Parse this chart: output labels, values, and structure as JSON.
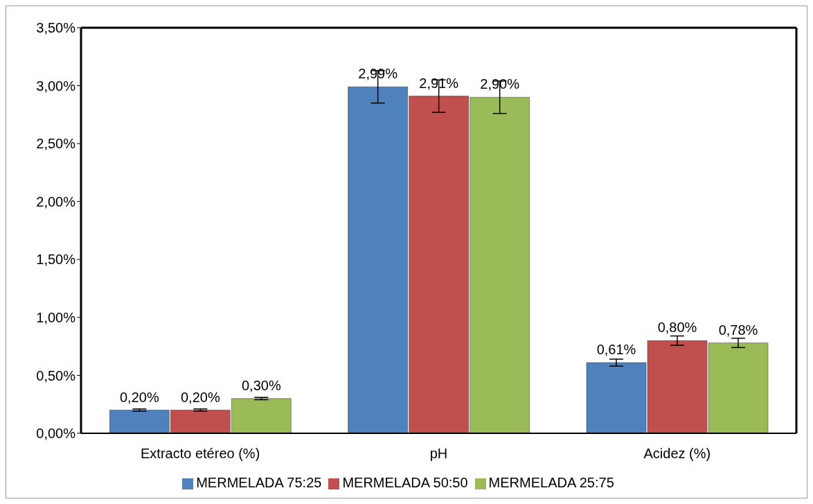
{
  "chart_data": {
    "type": "bar",
    "categories": [
      "Extracto etéreo (%)",
      "pH",
      "Acidez (%)"
    ],
    "series": [
      {
        "name": "MERMELADA 75:25",
        "color": "#4f81bd",
        "values": [
          0.2,
          2.99,
          0.61
        ],
        "errors": [
          0.01,
          0.14,
          0.03
        ],
        "value_labels": [
          "0,20%",
          "2,99%",
          "0,61%"
        ]
      },
      {
        "name": "MERMELADA 50:50",
        "color": "#c0504d",
        "values": [
          0.2,
          2.91,
          0.8
        ],
        "errors": [
          0.01,
          0.14,
          0.04
        ],
        "value_labels": [
          "0,20%",
          "2,91%",
          "0,80%"
        ]
      },
      {
        "name": "MERMELADA 25:75",
        "color": "#9bbb59",
        "values": [
          0.3,
          2.9,
          0.78
        ],
        "errors": [
          0.01,
          0.14,
          0.04
        ],
        "value_labels": [
          "0,30%",
          "2,90%",
          "0,78%"
        ]
      }
    ],
    "ylim": [
      0,
      3.5
    ],
    "yticks": [
      {
        "value": 0,
        "label": "0,00%"
      },
      {
        "value": 0.5,
        "label": "0,50%"
      },
      {
        "value": 1,
        "label": "1,00%"
      },
      {
        "value": 1.5,
        "label": "1,50%"
      },
      {
        "value": 2,
        "label": "2,00%"
      },
      {
        "value": 2.5,
        "label": "2,50%"
      },
      {
        "value": 3,
        "label": "3,00%"
      },
      {
        "value": 3.5,
        "label": "3,50%"
      }
    ],
    "grid": false,
    "legend": "bottom"
  }
}
